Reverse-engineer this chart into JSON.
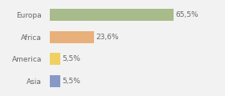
{
  "categories": [
    "Europa",
    "Africa",
    "America",
    "Asia"
  ],
  "values": [
    65.5,
    23.6,
    5.5,
    5.5
  ],
  "labels": [
    "65,5%",
    "23,6%",
    "5,5%",
    "5,5%"
  ],
  "bar_colors": [
    "#a8bb8a",
    "#e8b07a",
    "#f0d060",
    "#8899c8"
  ],
  "background_color": "#f2f2f2",
  "xlim": [
    0,
    90
  ],
  "bar_height": 0.55,
  "label_fontsize": 6.5,
  "tick_fontsize": 6.5
}
